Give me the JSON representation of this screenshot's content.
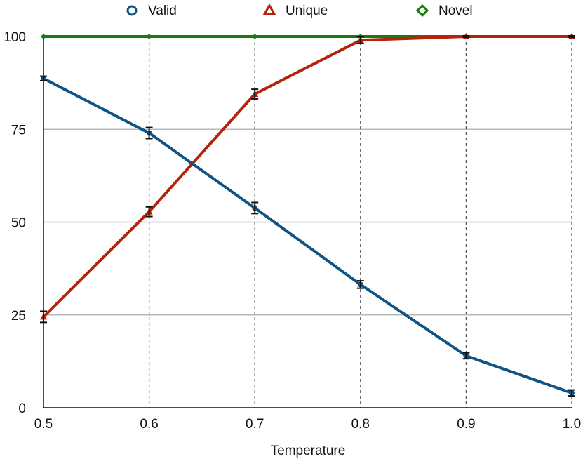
{
  "chart_data": {
    "type": "line",
    "x": [
      0.5,
      0.6,
      0.7,
      0.8,
      0.9,
      1.0
    ],
    "x_tick_labels": [
      "0.5",
      "0.6",
      "0.7",
      "0.8",
      "0.9",
      "1.0"
    ],
    "y_ticks": [
      0,
      25,
      50,
      75,
      100
    ],
    "y_tick_labels": [
      "0",
      "25",
      "50",
      "75",
      "100"
    ],
    "xlabel": "Temperature",
    "ylabel": "",
    "xlim": [
      0.5,
      1.0
    ],
    "ylim": [
      0,
      100
    ],
    "grid": {
      "horizontal": "solid light gray",
      "vertical": "dotted dark gray"
    },
    "legend_position": "top-center",
    "series": [
      {
        "name": "Valid",
        "marker": "circle",
        "color": "#0f5484",
        "values": [
          88.7,
          74.0,
          53.8,
          33.2,
          14.0,
          4.0
        ],
        "errors": [
          0.6,
          1.5,
          1.5,
          1.0,
          0.8,
          0.8
        ]
      },
      {
        "name": "Unique",
        "marker": "triangle",
        "color": "#b5220b",
        "values": [
          24.5,
          52.8,
          84.5,
          99.0,
          100.0,
          100.0
        ],
        "errors": [
          1.5,
          1.3,
          1.3,
          0.9,
          0.2,
          0.2
        ]
      },
      {
        "name": "Novel",
        "marker": "diamond",
        "color": "#1a7a12",
        "values": [
          100,
          100,
          100,
          100,
          100,
          100
        ],
        "errors": [
          0,
          0,
          0,
          0,
          0,
          0
        ]
      }
    ]
  }
}
